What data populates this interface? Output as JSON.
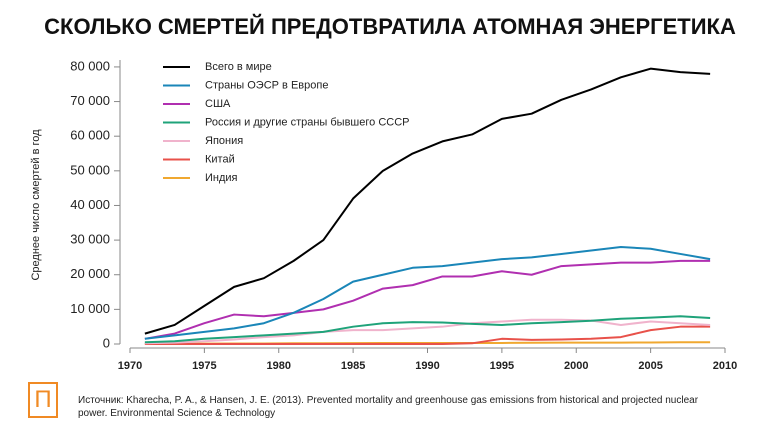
{
  "chart_data": {
    "type": "line",
    "title": "СКОЛЬКО СМЕРТЕЙ ПРЕДОТВРАТИЛА АТОМНАЯ ЭНЕРГЕТИКА",
    "y_label": "Среднее число смертей в год",
    "source": "Источник: Kharecha, P. A., & Hansen, J. E. (2013). Prevented mortality and greenhouse gas emissions from historical and projected nuclear power. Environmental Science & Technology",
    "x": [
      1971,
      1973,
      1975,
      1977,
      1979,
      1981,
      1983,
      1985,
      1987,
      1989,
      1991,
      1993,
      1995,
      1997,
      1999,
      2001,
      2003,
      2005,
      2007,
      2009
    ],
    "series": [
      {
        "name": "Всего в мире",
        "color": "#000000",
        "values": [
          3000,
          5500,
          11000,
          16500,
          19000,
          24000,
          30000,
          42000,
          50000,
          55000,
          58500,
          60500,
          65000,
          66500,
          70500,
          73500,
          77000,
          79500,
          78500,
          78000
        ]
      },
      {
        "name": "Страны ОЭСР в Европе",
        "color": "#1a86b8",
        "values": [
          1500,
          2500,
          3500,
          4500,
          6000,
          9000,
          13000,
          18000,
          20000,
          22000,
          22500,
          23500,
          24500,
          25000,
          26000,
          27000,
          28000,
          27500,
          26000,
          24500
        ]
      },
      {
        "name": "США",
        "color": "#b02fb0",
        "values": [
          1500,
          3000,
          6000,
          8500,
          8000,
          9000,
          10000,
          12500,
          16000,
          17000,
          19500,
          19500,
          21000,
          20000,
          22500,
          23000,
          23500,
          23500,
          24000,
          24000
        ]
      },
      {
        "name": "Россия и другие страны бывшего СССР",
        "color": "#1fa37a",
        "values": [
          500,
          800,
          1500,
          2000,
          2500,
          3000,
          3500,
          5000,
          6000,
          6300,
          6200,
          5800,
          5500,
          6000,
          6300,
          6700,
          7300,
          7600,
          8000,
          7500
        ]
      },
      {
        "name": "Япония",
        "color": "#f0b3cc",
        "values": [
          200,
          400,
          800,
          1300,
          2000,
          2500,
          3500,
          4000,
          4000,
          4500,
          5000,
          6000,
          6500,
          7000,
          7000,
          6800,
          5500,
          6500,
          6000,
          5500
        ]
      },
      {
        "name": "Китай",
        "color": "#e8514a",
        "values": [
          0,
          0,
          0,
          0,
          0,
          0,
          0,
          0,
          0,
          0,
          0,
          200,
          1500,
          1200,
          1300,
          1500,
          2000,
          4000,
          5000,
          5000
        ]
      },
      {
        "name": "Индия",
        "color": "#f0a830",
        "values": [
          100,
          100,
          100,
          150,
          150,
          200,
          200,
          250,
          300,
          300,
          300,
          300,
          300,
          350,
          400,
          400,
          400,
          450,
          500,
          500
        ]
      }
    ],
    "xlim": [
      1970,
      2010
    ],
    "xticks": [
      1970,
      1975,
      1980,
      1985,
      1990,
      1995,
      2000,
      2005,
      2010
    ],
    "ylim": [
      0,
      82000
    ],
    "yticks": [
      0,
      {
        "value": 10000,
        "label": "10 000"
      },
      {
        "value": 20000,
        "label": "20 000"
      },
      {
        "value": 30000,
        "label": "30 000"
      },
      {
        "value": 40000,
        "label": "40 000"
      },
      {
        "value": 50000,
        "label": "50 000"
      },
      {
        "value": 60000,
        "label": "60 000"
      },
      {
        "value": 70000,
        "label": "70 000"
      },
      {
        "value": 80000,
        "label": "80 000"
      }
    ]
  }
}
